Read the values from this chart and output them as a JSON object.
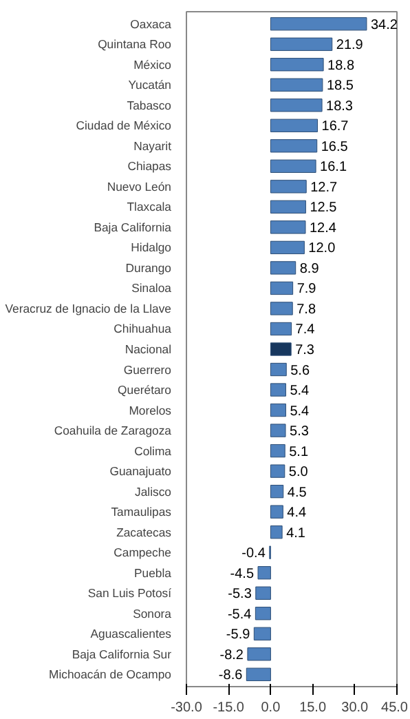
{
  "chart_data": {
    "type": "bar",
    "orientation": "horizontal",
    "categories": [
      "Oaxaca",
      "Quintana Roo",
      "México",
      "Yucatán",
      "Tabasco",
      "Ciudad de México",
      "Nayarit",
      "Chiapas",
      "Nuevo León",
      "Tlaxcala",
      "Baja California",
      "Hidalgo",
      "Durango",
      "Sinaloa",
      "Veracruz de Ignacio de la Llave",
      "Chihuahua",
      "Nacional",
      "Guerrero",
      "Querétaro",
      "Morelos",
      "Coahuila de Zaragoza",
      "Colima",
      "Guanajuato",
      "Jalisco",
      "Tamaulipas",
      "Zacatecas",
      "Campeche",
      "Puebla",
      "San Luis Potosí",
      "Sonora",
      "Aguascalientes",
      "Baja California Sur",
      "Michoacán de Ocampo"
    ],
    "values": [
      34.2,
      21.9,
      18.8,
      18.5,
      18.3,
      16.7,
      16.5,
      16.1,
      12.7,
      12.5,
      12.4,
      12.0,
      8.9,
      7.9,
      7.8,
      7.4,
      7.3,
      5.6,
      5.4,
      5.4,
      5.3,
      5.1,
      5.0,
      4.5,
      4.4,
      4.1,
      -0.4,
      -4.5,
      -5.3,
      -5.4,
      -5.9,
      -8.2,
      -8.6
    ],
    "value_labels": [
      "34.2",
      "21.9",
      "18.8",
      "18.5",
      "18.3",
      "16.7",
      "16.5",
      "16.1",
      "12.7",
      "12.5",
      "12.4",
      "12.0",
      "8.9",
      "7.9",
      "7.8",
      "7.4",
      "7.3",
      "5.6",
      "5.4",
      "5.4",
      "5.3",
      "5.1",
      "5.0",
      "4.5",
      "4.4",
      "4.1",
      "-0.4",
      "-4.5",
      "-5.3",
      "-5.4",
      "-5.9",
      "-8.2",
      "-8.6"
    ],
    "colors": [
      "#4f81bd",
      "#4f81bd",
      "#4f81bd",
      "#4f81bd",
      "#4f81bd",
      "#4f81bd",
      "#4f81bd",
      "#4f81bd",
      "#4f81bd",
      "#4f81bd",
      "#4f81bd",
      "#4f81bd",
      "#4f81bd",
      "#4f81bd",
      "#4f81bd",
      "#4f81bd",
      "#17375e",
      "#4f81bd",
      "#4f81bd",
      "#4f81bd",
      "#4f81bd",
      "#4f81bd",
      "#4f81bd",
      "#4f81bd",
      "#4f81bd",
      "#4f81bd",
      "#4f81bd",
      "#4f81bd",
      "#4f81bd",
      "#4f81bd",
      "#4f81bd",
      "#4f81bd",
      "#4f81bd"
    ],
    "xlim": [
      -30,
      45
    ],
    "xticks": [
      {
        "value": -30,
        "label": "-30.0"
      },
      {
        "value": -15,
        "label": "-15.0"
      },
      {
        "value": 0,
        "label": "0.0"
      },
      {
        "value": 15,
        "label": "15.0"
      },
      {
        "value": 30,
        "label": "30.0"
      },
      {
        "value": 45,
        "label": "45.0"
      }
    ],
    "grid": false
  }
}
